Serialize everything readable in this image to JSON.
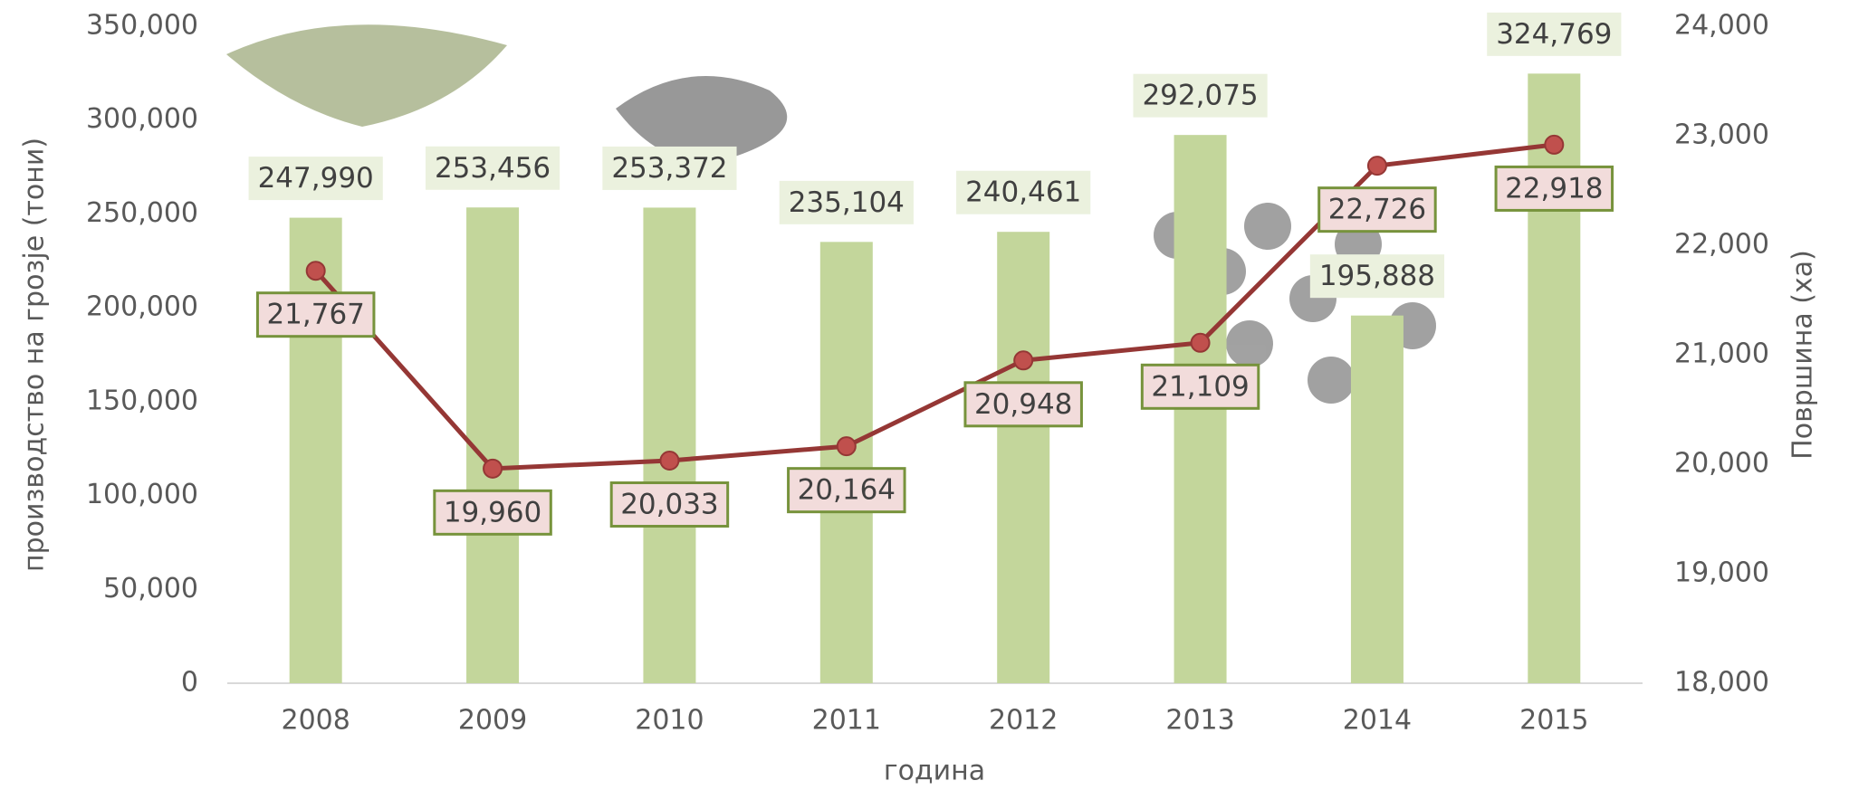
{
  "chart_data": {
    "type": "combo",
    "categories": [
      "2008",
      "2009",
      "2010",
      "2011",
      "2012",
      "2013",
      "2014",
      "2015"
    ],
    "xlabel": "година",
    "ylabel": "производство на грозје (тони)",
    "y2label": "Површина (ха)",
    "ylim": [
      0,
      350000
    ],
    "yticks": [
      0,
      {
        "value": 50000,
        "label": "50,000"
      },
      {
        "value": 100000,
        "label": "100,000"
      },
      {
        "value": 150000,
        "label": "150,000"
      },
      {
        "value": 200000,
        "label": "200,000"
      },
      {
        "value": 250000,
        "label": "250,000"
      },
      {
        "value": 300000,
        "label": "300,000"
      },
      {
        "value": 350000,
        "label": "350,000"
      }
    ],
    "y2lim": [
      18000,
      24000
    ],
    "y2ticks": [
      {
        "value": 18000,
        "label": "18,000"
      },
      {
        "value": 19000,
        "label": "19,000"
      },
      {
        "value": 20000,
        "label": "20,000"
      },
      {
        "value": 21000,
        "label": "21,000"
      },
      {
        "value": 22000,
        "label": "22,000"
      },
      {
        "value": 23000,
        "label": "23,000"
      },
      {
        "value": 24000,
        "label": "24,000"
      }
    ],
    "series": [
      {
        "type": "bar",
        "color": "#c3d69b",
        "values": [
          247990,
          253456,
          253372,
          235104,
          240461,
          292075,
          195888,
          324769
        ],
        "value_labels": [
          "247,990",
          "253,456",
          "253,372",
          "235,104",
          "240,461",
          "292,075",
          "195,888",
          "324,769"
        ]
      },
      {
        "type": "line",
        "axis": "y2",
        "color": "#953735",
        "values": [
          21767,
          19960,
          20033,
          20164,
          20948,
          21109,
          22726,
          22918
        ],
        "value_labels": [
          "21,767",
          "19,960",
          "20,033",
          "20,164",
          "20,948",
          "21,109",
          "22,726",
          "22,918"
        ]
      }
    ]
  }
}
